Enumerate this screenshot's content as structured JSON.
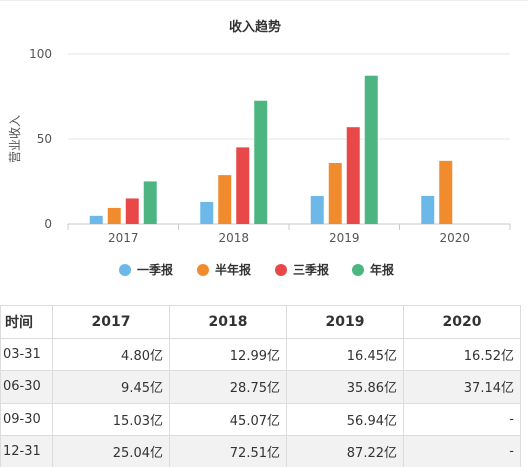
{
  "chart_data": {
    "type": "bar",
    "title": "收入趋势",
    "ylabel": "营业收入",
    "xlabel": "",
    "ylim": [
      0,
      100
    ],
    "yticks": [
      0,
      50,
      100
    ],
    "categories": [
      "2017",
      "2018",
      "2019",
      "2020"
    ],
    "grid": true,
    "legend_position": "bottom",
    "series": [
      {
        "name": "一季报",
        "color": "#6cb8e8",
        "values": [
          4.8,
          12.99,
          16.45,
          16.52
        ]
      },
      {
        "name": "半年报",
        "color": "#f08c2e",
        "values": [
          9.45,
          28.75,
          35.86,
          37.14
        ]
      },
      {
        "name": "三季报",
        "color": "#e84848",
        "values": [
          15.03,
          45.07,
          56.94,
          null
        ]
      },
      {
        "name": "年报",
        "color": "#4cb582",
        "values": [
          25.04,
          72.51,
          87.22,
          null
        ]
      }
    ]
  },
  "table": {
    "headers": [
      "时间",
      "2017",
      "2018",
      "2019",
      "2020"
    ],
    "rows": [
      [
        "03-31",
        "4.80亿",
        "12.99亿",
        "16.45亿",
        "16.52亿"
      ],
      [
        "06-30",
        "9.45亿",
        "28.75亿",
        "35.86亿",
        "37.14亿"
      ],
      [
        "09-30",
        "15.03亿",
        "45.07亿",
        "56.94亿",
        "-"
      ],
      [
        "12-31",
        "25.04亿",
        "72.51亿",
        "87.22亿",
        "-"
      ]
    ]
  }
}
